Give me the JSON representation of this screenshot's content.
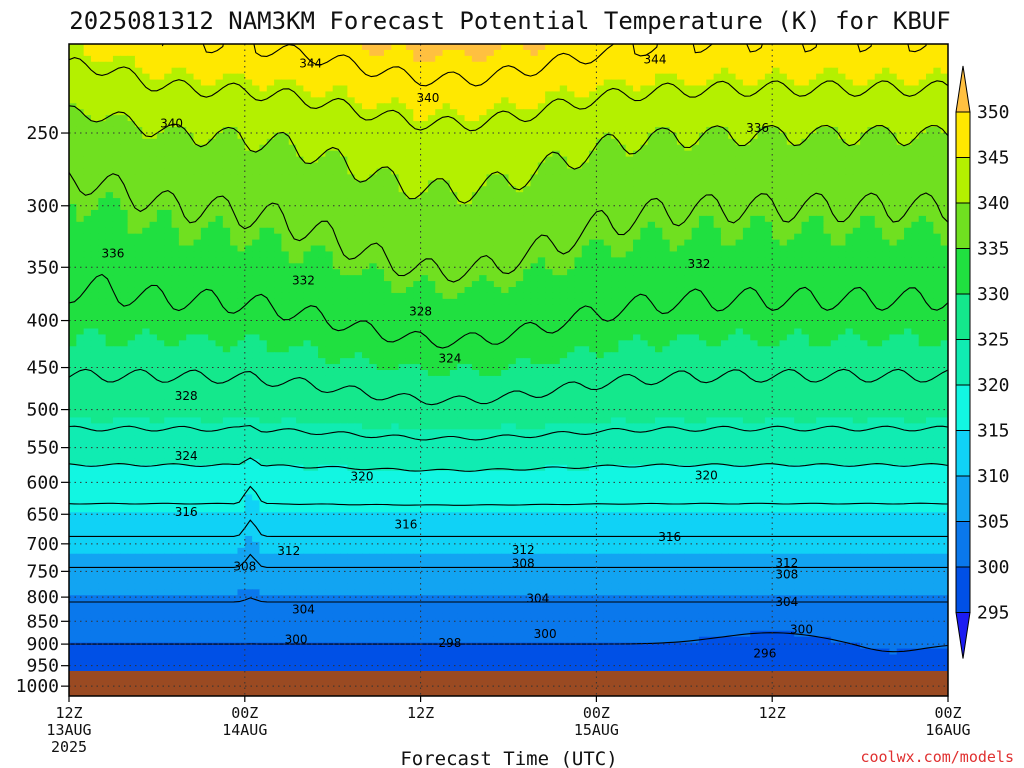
{
  "chart_data": {
    "type": "heatmap",
    "title": "2025081312 NAM3KM Forecast Potential Temperature (K) for KBUF",
    "xlabel": "Forecast Time (UTC)",
    "ylabel": "",
    "credit": "coolwx.com/models",
    "x_ticks": [
      {
        "hour": 0,
        "l1": "12Z",
        "l2": "13AUG",
        "l3": "2025"
      },
      {
        "hour": 12,
        "l1": "00Z",
        "l2": "14AUG",
        "l3": ""
      },
      {
        "hour": 24,
        "l1": "12Z",
        "l2": "",
        "l3": ""
      },
      {
        "hour": 36,
        "l1": "00Z",
        "l2": "15AUG",
        "l3": ""
      },
      {
        "hour": 48,
        "l1": "12Z",
        "l2": "",
        "l3": ""
      },
      {
        "hour": 60,
        "l1": "00Z",
        "l2": "16AUG",
        "l3": ""
      }
    ],
    "xlim": [
      0,
      60
    ],
    "y_ticks": [
      250,
      300,
      350,
      400,
      450,
      500,
      550,
      600,
      650,
      700,
      750,
      800,
      850,
      900,
      950,
      1000
    ],
    "ylim": [
      200,
      1025
    ],
    "y_scale": "log",
    "y_inverted": true,
    "grid": "dotted",
    "colorbar": {
      "levels": [
        295,
        300,
        305,
        310,
        315,
        320,
        325,
        330,
        335,
        340,
        345,
        350
      ],
      "colors": [
        "#1c1cf2",
        "#0050e6",
        "#0a78ec",
        "#12a4f2",
        "#10d2f6",
        "#12f6e2",
        "#10ecb2",
        "#14e88c",
        "#20e040",
        "#70e020",
        "#b4f000",
        "#ffe800",
        "#ffc040"
      ],
      "placement": "right"
    },
    "contour_interval_K": 4,
    "contour_labels": [
      {
        "text": "344",
        "hour": 16.5,
        "p": 210
      },
      {
        "text": "344",
        "hour": 40.0,
        "p": 208
      },
      {
        "text": "340",
        "hour": 24.5,
        "p": 229
      },
      {
        "text": "340",
        "hour": 7.0,
        "p": 244
      },
      {
        "text": "336",
        "hour": 47.0,
        "p": 247
      },
      {
        "text": "336",
        "hour": 3.0,
        "p": 338
      },
      {
        "text": "332",
        "hour": 16.0,
        "p": 362
      },
      {
        "text": "332",
        "hour": 43.0,
        "p": 347
      },
      {
        "text": "328",
        "hour": 24.0,
        "p": 391
      },
      {
        "text": "328",
        "hour": 8.0,
        "p": 483
      },
      {
        "text": "324",
        "hour": 26.0,
        "p": 440
      },
      {
        "text": "324",
        "hour": 8.0,
        "p": 562
      },
      {
        "text": "320",
        "hour": 20.0,
        "p": 591
      },
      {
        "text": "320",
        "hour": 43.5,
        "p": 590
      },
      {
        "text": "316",
        "hour": 8.0,
        "p": 646
      },
      {
        "text": "316",
        "hour": 23.0,
        "p": 667
      },
      {
        "text": "316",
        "hour": 41.0,
        "p": 688
      },
      {
        "text": "312",
        "hour": 15.0,
        "p": 713
      },
      {
        "text": "312",
        "hour": 31.0,
        "p": 711
      },
      {
        "text": "312",
        "hour": 49.0,
        "p": 734
      },
      {
        "text": "308",
        "hour": 12.0,
        "p": 741
      },
      {
        "text": "308",
        "hour": 31.0,
        "p": 735
      },
      {
        "text": "308",
        "hour": 49.0,
        "p": 756
      },
      {
        "text": "304",
        "hour": 16.0,
        "p": 825
      },
      {
        "text": "304",
        "hour": 32.0,
        "p": 803
      },
      {
        "text": "304",
        "hour": 49.0,
        "p": 810
      },
      {
        "text": "300",
        "hour": 15.5,
        "p": 890
      },
      {
        "text": "300",
        "hour": 32.5,
        "p": 878
      },
      {
        "text": "300",
        "hour": 50.0,
        "p": 868
      },
      {
        "text": "298",
        "hour": 26.0,
        "p": 898
      },
      {
        "text": "296",
        "hour": 47.5,
        "p": 921
      }
    ],
    "theta_profile": [
      {
        "p": 1000,
        "theta": 298
      },
      {
        "p": 950,
        "theta": 298.5
      },
      {
        "p": 900,
        "theta": 300
      },
      {
        "p": 850,
        "theta": 302
      },
      {
        "p": 800,
        "theta": 304.5
      },
      {
        "p": 750,
        "theta": 307.5
      },
      {
        "p": 700,
        "theta": 311
      },
      {
        "p": 650,
        "theta": 315
      },
      {
        "p": 600,
        "theta": 318
      },
      {
        "p": 550,
        "theta": 322
      },
      {
        "p": 500,
        "theta": 326
      },
      {
        "p": 450,
        "theta": 328.5
      },
      {
        "p": 400,
        "theta": 331
      },
      {
        "p": 350,
        "theta": 333.5
      },
      {
        "p": 300,
        "theta": 336
      },
      {
        "p": 250,
        "theta": 340
      },
      {
        "p": 200,
        "theta": 348
      }
    ],
    "ground_color": "#9a4a22"
  }
}
